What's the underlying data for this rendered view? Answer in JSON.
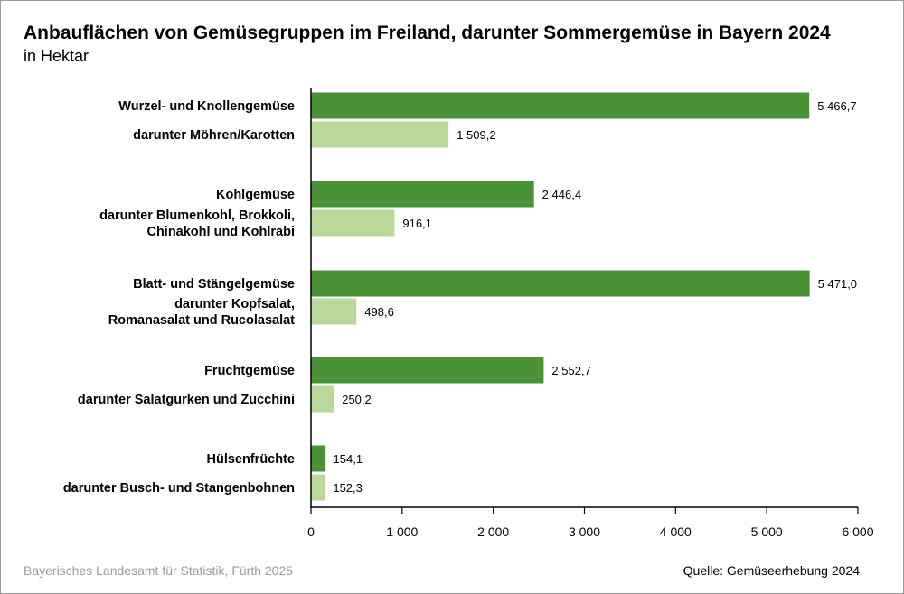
{
  "title": "Anbauflächen von Gemüsegruppen im Freiland, darunter Sommergemüse in Bayern 2024",
  "subtitle": "in Hektar",
  "footer": {
    "publisher": "Bayerisches Landesamt für Statistik, Fürth 2025",
    "source": "Quelle: Gemüseerhebung 2024"
  },
  "colors": {
    "group": "#4a9237",
    "sub": "#b8d99a",
    "axis": "#000000",
    "grid": "#cccccc"
  },
  "chart_data": {
    "type": "bar",
    "orientation": "horizontal",
    "title": "Anbauflächen von Gemüsegruppen im Freiland, darunter Sommergemüse in Bayern 2024",
    "unit": "in Hektar",
    "xlim": [
      0,
      6000
    ],
    "xticks": [
      0,
      1000,
      2000,
      3000,
      4000,
      5000,
      6000
    ],
    "xtick_labels": [
      "0",
      "1 000",
      "2 000",
      "3 000",
      "4 000",
      "5 000",
      "6 000"
    ],
    "grid": false,
    "bars": [
      {
        "label": [
          "Wurzel- und Knollengemüse"
        ],
        "value": 5466.7,
        "value_label": "5 466,7",
        "kind": "group"
      },
      {
        "label": [
          "darunter Möhren/Karotten"
        ],
        "value": 1509.2,
        "value_label": "1 509,2",
        "kind": "sub"
      },
      {
        "label": [
          "Kohlgemüse"
        ],
        "value": 2446.4,
        "value_label": "2 446,4",
        "kind": "group"
      },
      {
        "label": [
          "darunter Blumenkohl, Brokkoli,",
          "Chinakohl und Kohlrabi"
        ],
        "value": 916.1,
        "value_label": "916,1",
        "kind": "sub"
      },
      {
        "label": [
          "Blatt- und Stängelgemüse"
        ],
        "value": 5471.0,
        "value_label": "5 471,0",
        "kind": "group"
      },
      {
        "label": [
          "darunter Kopfsalat,",
          "Romanasalat und Rucolasalat"
        ],
        "value": 498.6,
        "value_label": "498,6",
        "kind": "sub"
      },
      {
        "label": [
          "Fruchtgemüse"
        ],
        "value": 2552.7,
        "value_label": "2 552,7",
        "kind": "group"
      },
      {
        "label": [
          "darunter Salatgurken und Zucchini"
        ],
        "value": 250.2,
        "value_label": "250,2",
        "kind": "sub"
      },
      {
        "label": [
          "Hülsenfrüchte"
        ],
        "value": 154.1,
        "value_label": "154,1",
        "kind": "group"
      },
      {
        "label": [
          "darunter Busch- und Stangenbohnen"
        ],
        "value": 152.3,
        "value_label": "152,3",
        "kind": "sub"
      }
    ]
  }
}
